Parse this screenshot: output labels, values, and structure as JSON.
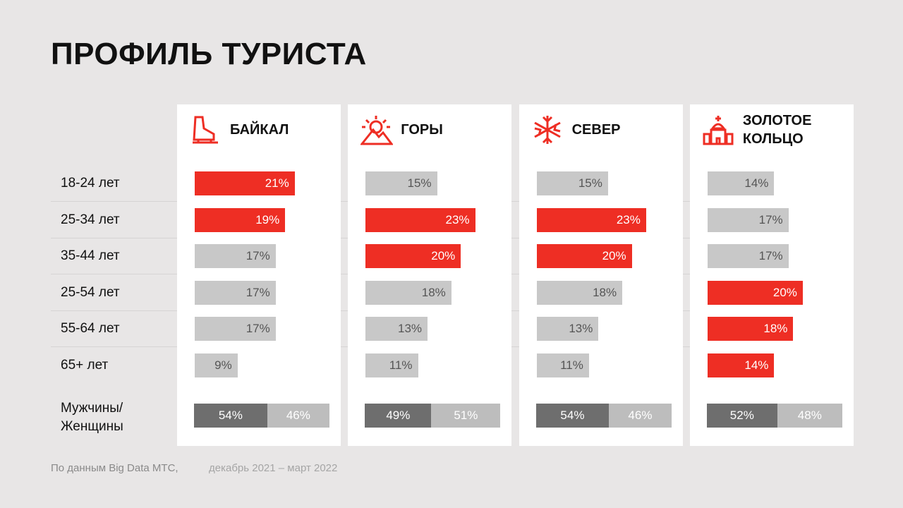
{
  "chart_data": {
    "type": "bar",
    "title": "ПРОФИЛЬ ТУРИСТА",
    "categories": [
      "18-24 лет",
      "25-34 лет",
      "35-44 лет",
      "25-54 лет",
      "55-64 лет",
      "65+ лет"
    ],
    "series": [
      {
        "name": "БАЙКАЛ",
        "values": [
          21,
          19,
          17,
          17,
          17,
          9
        ],
        "value_labels": [
          "21%",
          "19%",
          "17%",
          "17%",
          "17%",
          "9%"
        ],
        "colors": [
          "#ee2e24",
          "#ee2e24",
          "#c8c8c8",
          "#c8c8c8",
          "#c8c8c8",
          "#c8c8c8"
        ],
        "gender": {
          "values": [
            54,
            46
          ],
          "value_labels": [
            "54%",
            "46%"
          ]
        }
      },
      {
        "name": "ГОРЫ",
        "values": [
          15,
          23,
          20,
          18,
          13,
          11
        ],
        "value_labels": [
          "15%",
          "23%",
          "20%",
          "18%",
          "13%",
          "11%"
        ],
        "colors": [
          "#c8c8c8",
          "#ee2e24",
          "#ee2e24",
          "#c8c8c8",
          "#c8c8c8",
          "#c8c8c8"
        ],
        "gender": {
          "values": [
            49,
            51
          ],
          "value_labels": [
            "49%",
            "51%"
          ]
        }
      },
      {
        "name": "СЕВЕР",
        "values": [
          15,
          23,
          20,
          18,
          13,
          11
        ],
        "value_labels": [
          "15%",
          "23%",
          "20%",
          "18%",
          "13%",
          "11%"
        ],
        "colors": [
          "#c8c8c8",
          "#ee2e24",
          "#ee2e24",
          "#c8c8c8",
          "#c8c8c8",
          "#c8c8c8"
        ],
        "gender": {
          "values": [
            54,
            46
          ],
          "value_labels": [
            "54%",
            "46%"
          ]
        }
      },
      {
        "name": "ЗОЛОТОЕ КОЛЬЦО",
        "values": [
          14,
          17,
          17,
          20,
          18,
          14
        ],
        "value_labels": [
          "14%",
          "17%",
          "17%",
          "20%",
          "18%",
          "14%"
        ],
        "colors": [
          "#c8c8c8",
          "#c8c8c8",
          "#c8c8c8",
          "#ee2e24",
          "#ee2e24",
          "#ee2e24"
        ],
        "gender": {
          "values": [
            52,
            48
          ],
          "value_labels": [
            "52%",
            "48%"
          ]
        }
      }
    ],
    "gender_label": [
      "Мужчины/",
      "Женщины"
    ],
    "gender_colors": [
      "#6e6e6e",
      "#bdbdbd"
    ],
    "source": [
      "По данным Big Data МТС,",
      "декабрь 2021 – март 2022"
    ]
  }
}
